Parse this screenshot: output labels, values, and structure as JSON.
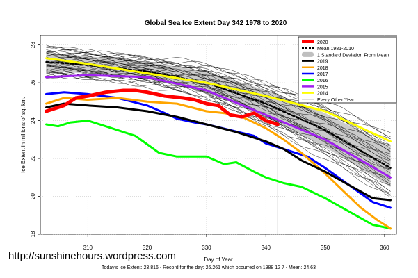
{
  "chart_data": {
    "type": "line",
    "title": "Global Sea Ice Extent Day 342 1978 to 2020",
    "xlabel": "Day of Year",
    "ylabel": "Ice Extent in millions of sq. km.",
    "xlim": [
      302,
      362
    ],
    "ylim": [
      18,
      28.5
    ],
    "xticks": [
      310,
      320,
      330,
      340,
      350,
      360
    ],
    "yticks": [
      18,
      20,
      22,
      24,
      26,
      28
    ],
    "grid": true,
    "legend_position": "top-right",
    "vline_day": 342,
    "footer": "Today's Ice Extent: 23.816  - Record for the day: 26.261 which occurred on 1988 12 7  - Mean: 24.63",
    "source_note": "http://sunshinehours.wordpress.com",
    "legend": [
      {
        "label": "2020",
        "color": "#ff0000",
        "kind": "line"
      },
      {
        "label": "Mean 1981-2010",
        "color": "#000000",
        "kind": "dashed"
      },
      {
        "label": "1 Standard Deviation From Mean",
        "color": "#bfbfbf",
        "kind": "band"
      },
      {
        "label": "2019",
        "color": "#000000",
        "kind": "line"
      },
      {
        "label": "2018",
        "color": "#ffa500",
        "kind": "line"
      },
      {
        "label": "2017",
        "color": "#0000ff",
        "kind": "line"
      },
      {
        "label": "2016",
        "color": "#00ff00",
        "kind": "line"
      },
      {
        "label": "2015",
        "color": "#a020f0",
        "kind": "line"
      },
      {
        "label": "2014",
        "color": "#ffff00",
        "kind": "line"
      },
      {
        "label": "Every Other Year",
        "color": "#000000",
        "kind": "thin"
      }
    ],
    "std_band": {
      "x": [
        303,
        310,
        320,
        330,
        340,
        350,
        361
      ],
      "upper": [
        27.6,
        27.4,
        27.1,
        26.6,
        25.6,
        24.4,
        22.6
      ],
      "lower": [
        26.6,
        26.5,
        26.2,
        25.5,
        24.2,
        22.6,
        20.5
      ]
    },
    "series": [
      {
        "name": "Mean 1981-2010",
        "color": "#000000",
        "width": 2.5,
        "dash": "4,3",
        "x": [
          303,
          310,
          320,
          330,
          340,
          350,
          361
        ],
        "values": [
          27.1,
          26.95,
          26.6,
          26.0,
          24.9,
          23.5,
          21.5
        ]
      },
      {
        "name": "2014",
        "color": "#ffff00",
        "width": 3,
        "x": [
          303,
          310,
          320,
          330,
          340,
          350,
          361
        ],
        "values": [
          27.3,
          27.0,
          26.5,
          26.0,
          25.3,
          24.5,
          22.9
        ]
      },
      {
        "name": "2015",
        "color": "#a020f0",
        "width": 3,
        "x": [
          303,
          310,
          320,
          330,
          340,
          350,
          361
        ],
        "values": [
          26.3,
          26.4,
          26.3,
          25.6,
          24.3,
          23.0,
          21.0
        ]
      },
      {
        "name": "2016",
        "color": "#00ff00",
        "width": 3,
        "x": [
          303,
          305,
          307,
          310,
          313,
          318,
          322,
          325,
          330,
          333,
          335,
          338,
          340,
          343,
          346,
          350,
          354,
          358,
          361
        ],
        "values": [
          23.8,
          23.7,
          23.9,
          24.0,
          23.7,
          23.2,
          22.3,
          22.1,
          22.1,
          21.7,
          21.8,
          21.3,
          21.0,
          20.7,
          20.5,
          19.9,
          19.2,
          18.5,
          18.3
        ]
      },
      {
        "name": "2017",
        "color": "#0000ff",
        "width": 3,
        "x": [
          303,
          306,
          310,
          315,
          320,
          323,
          325,
          328,
          330,
          334,
          338,
          340,
          343,
          347,
          350,
          354,
          358,
          361
        ],
        "values": [
          25.4,
          25.5,
          25.4,
          25.2,
          24.8,
          24.4,
          24.1,
          23.9,
          23.8,
          23.5,
          23.2,
          22.8,
          22.5,
          22.1,
          21.5,
          20.6,
          19.7,
          19.4
        ]
      },
      {
        "name": "2018",
        "color": "#ffa500",
        "width": 3,
        "x": [
          303,
          306,
          310,
          315,
          320,
          325,
          330,
          333,
          336,
          340,
          343,
          346,
          350,
          353,
          356,
          359,
          361
        ],
        "values": [
          24.9,
          25.2,
          25.1,
          25.2,
          25.0,
          24.9,
          24.5,
          24.4,
          24.2,
          23.6,
          23.0,
          22.3,
          21.2,
          20.3,
          19.4,
          18.7,
          18.3
        ]
      },
      {
        "name": "2019",
        "color": "#000000",
        "width": 3,
        "x": [
          303,
          306,
          310,
          315,
          320,
          325,
          330,
          335,
          340,
          343,
          346,
          350,
          354,
          358,
          361
        ],
        "values": [
          24.7,
          24.9,
          24.8,
          24.7,
          24.5,
          24.2,
          23.8,
          23.4,
          22.9,
          22.5,
          21.9,
          21.3,
          20.6,
          19.9,
          19.8
        ]
      },
      {
        "name": "2020",
        "color": "#ff0000",
        "width": 5,
        "x": [
          303,
          306,
          308,
          310,
          313,
          316,
          318,
          320,
          323,
          326,
          328,
          330,
          332,
          334,
          336,
          338,
          340,
          342
        ],
        "values": [
          24.5,
          24.8,
          25.2,
          25.3,
          25.5,
          25.6,
          25.6,
          25.5,
          25.3,
          25.2,
          25.1,
          24.9,
          24.8,
          24.3,
          24.2,
          24.4,
          24.0,
          23.8
        ]
      }
    ]
  }
}
